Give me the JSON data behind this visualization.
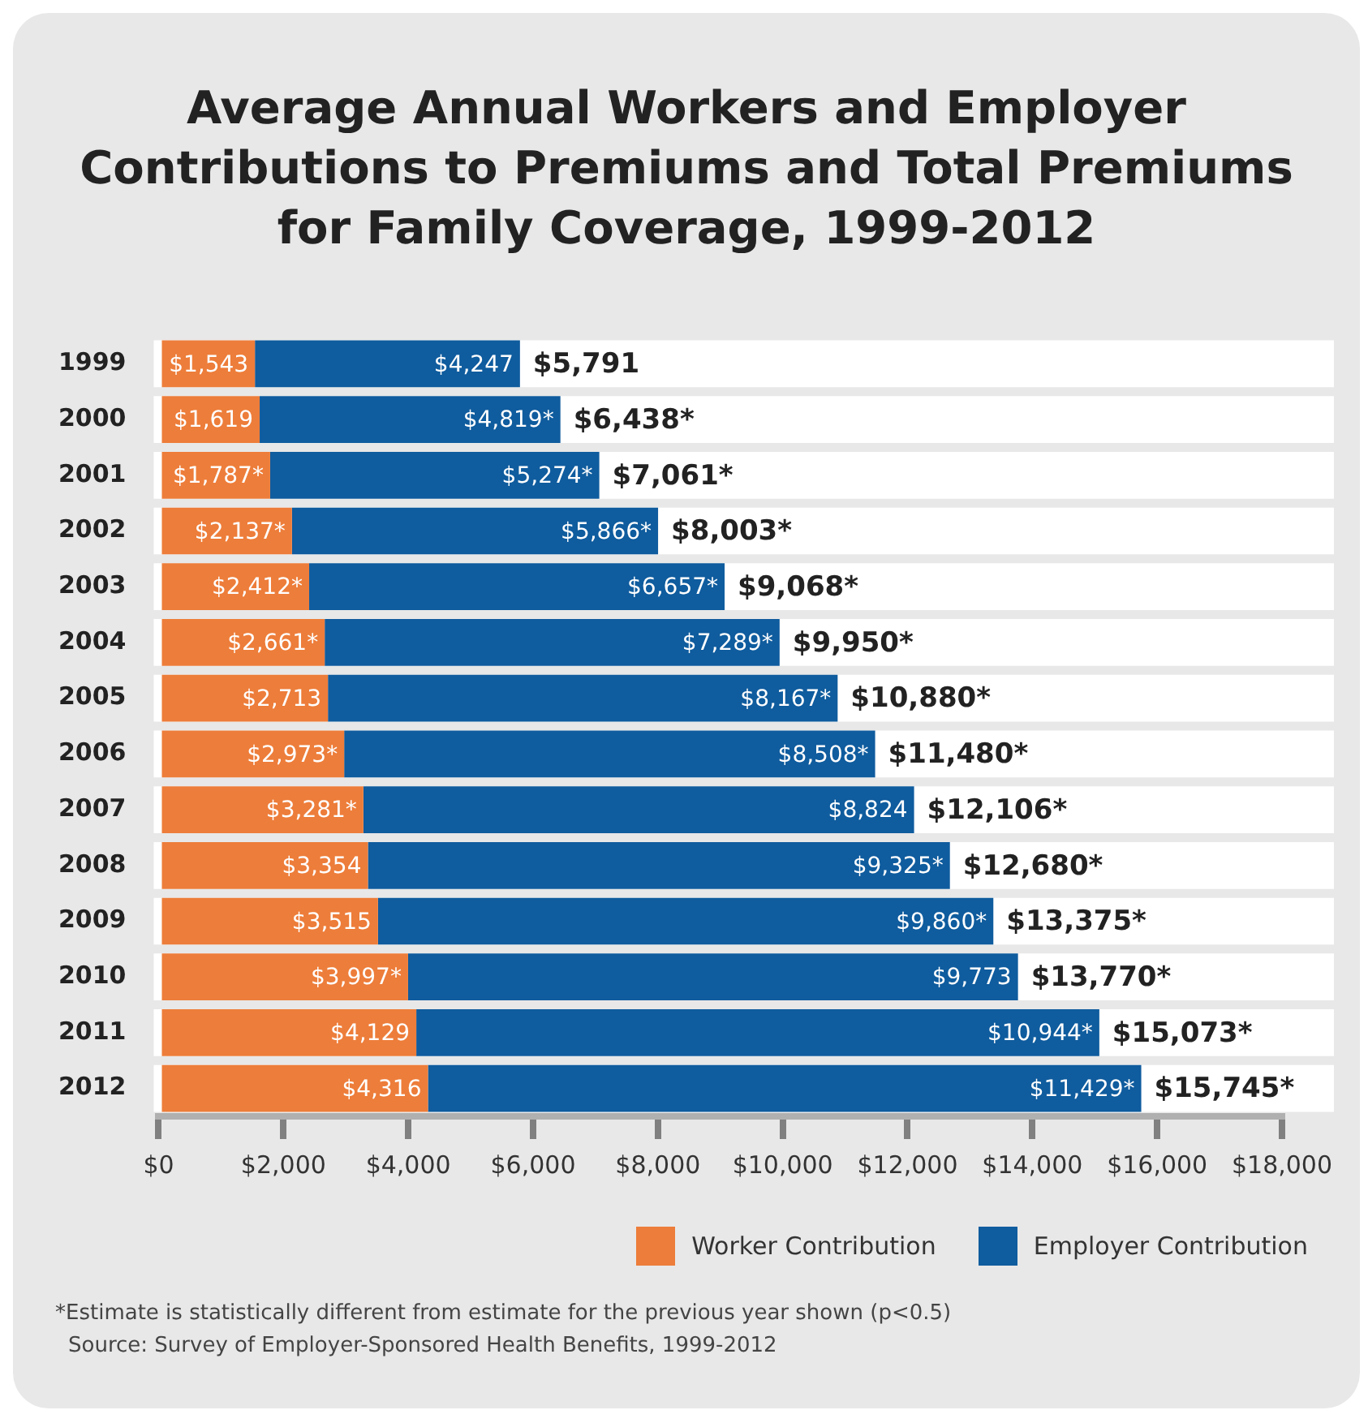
{
  "chart_data": {
    "type": "bar",
    "orientation": "horizontal",
    "stacked": true,
    "title": "Average Annual Workers and Employer Contributions to Premiums and Total Premiums for Family Coverage, 1999-2012",
    "categories": [
      "1999",
      "2000",
      "2001",
      "2002",
      "2003",
      "2004",
      "2005",
      "2006",
      "2007",
      "2008",
      "2009",
      "2010",
      "2011",
      "2012"
    ],
    "series": [
      {
        "name": "Worker Contribution",
        "color": "#ed7d3a",
        "values": [
          1543,
          1619,
          1787,
          2137,
          2412,
          2661,
          2713,
          2973,
          3281,
          3354,
          3515,
          3997,
          4129,
          4316
        ],
        "value_labels": [
          "$1,543",
          "$1,619",
          "$1,787*",
          "$2,137*",
          "$2,412*",
          "$2,661*",
          "$2,713",
          "$2,973*",
          "$3,281*",
          "$3,354",
          "$3,515",
          "$3,997*",
          "$4,129",
          "$4,316"
        ]
      },
      {
        "name": "Employer Contribution",
        "color": "#0f5c9e",
        "values": [
          4247,
          4819,
          5274,
          5866,
          6657,
          7289,
          8167,
          8508,
          8824,
          9325,
          9860,
          9773,
          10944,
          11429
        ],
        "value_labels": [
          "$4,247",
          "$4,819*",
          "$5,274*",
          "$5,866*",
          "$6,657*",
          "$7,289*",
          "$8,167*",
          "$8,508*",
          "$8,824",
          "$9,325*",
          "$9,860*",
          "$9,773",
          "$10,944*",
          "$11,429*"
        ]
      }
    ],
    "totals": [
      "$5,791",
      "$6,438*",
      "$7,061*",
      "$8,003*",
      "$9,068*",
      "$9,950*",
      "$10,880*",
      "$11,480*",
      "$12,106*",
      "$12,680*",
      "$13,375*",
      "$13,770*",
      "$15,073*",
      "$15,745*"
    ],
    "xlim": [
      0,
      18000
    ],
    "xticks": [
      {
        "value": 0,
        "label": "$0"
      },
      {
        "value": 2000,
        "label": "$2,000"
      },
      {
        "value": 4000,
        "label": "$4,000"
      },
      {
        "value": 6000,
        "label": "$6,000"
      },
      {
        "value": 8000,
        "label": "$8,000"
      },
      {
        "value": 10000,
        "label": "$10,000"
      },
      {
        "value": 12000,
        "label": "$12,000"
      },
      {
        "value": 14000,
        "label": "$14,000"
      },
      {
        "value": 16000,
        "label": "$16,000"
      },
      {
        "value": 18000,
        "label": "$18,000"
      }
    ],
    "legend": "bottom right",
    "annotations": [
      "*Estimate is statistically different from estimate for the previous year shown (p<0.5)",
      "Source: Survey of Employer-Sponsored Health Benefits, 1999-2012"
    ]
  }
}
